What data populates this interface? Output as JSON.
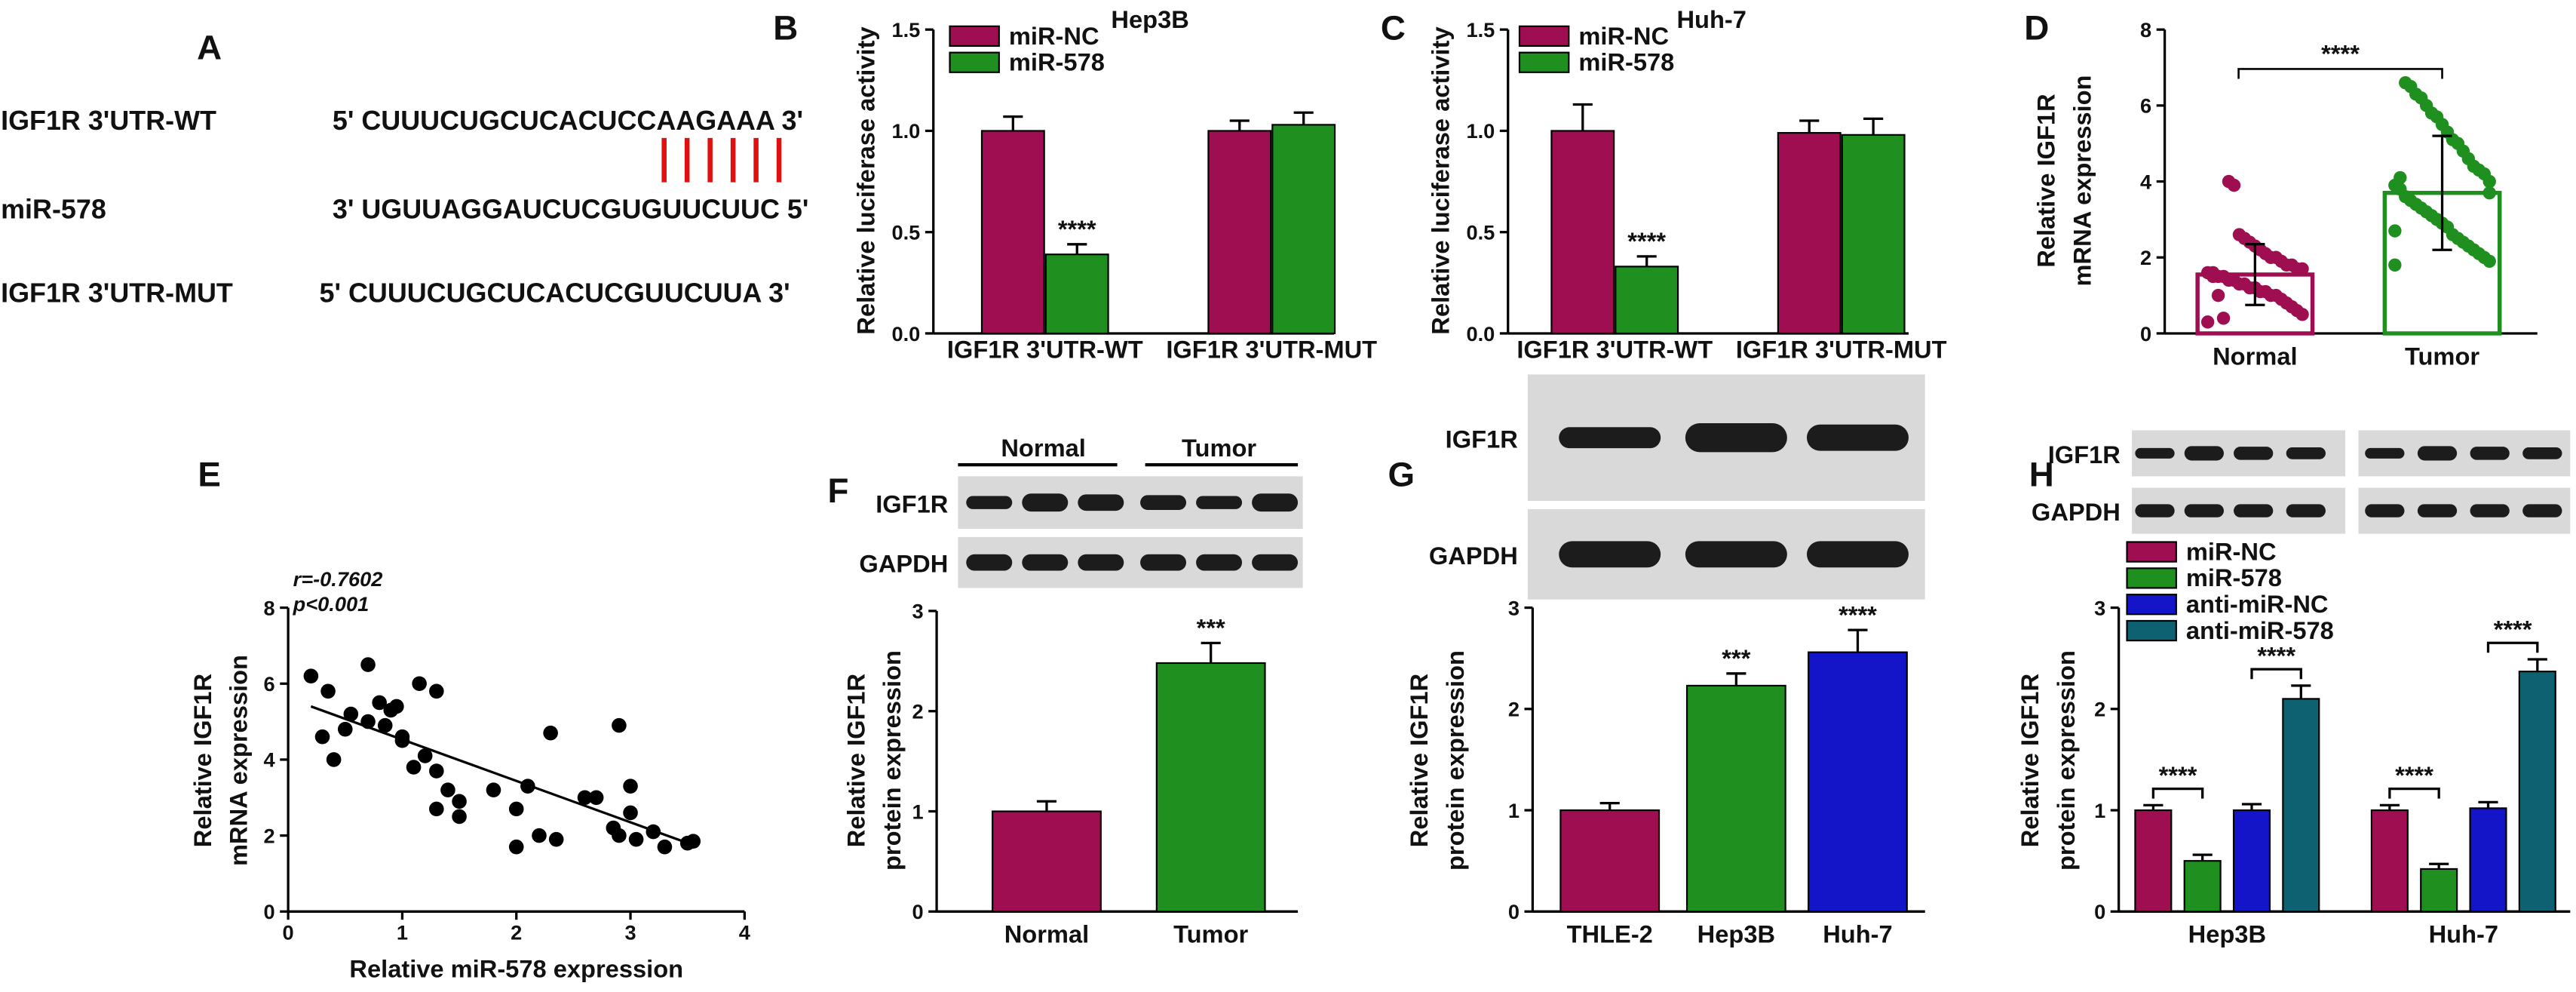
{
  "panel_a": {
    "label": "A",
    "rows": [
      {
        "name": "IGF1R 3'UTR-WT",
        "sequence": "5' CUUUCUGCUCACUCCAAGAAA 3'"
      },
      {
        "name": "miR-578",
        "sequence": "3' UGUUAGGAUCUCGUGUUCUUC 5'"
      },
      {
        "name": "IGF1R 3'UTR-MUT",
        "sequence": "5' CUUUCUGCUCACUCGUUCUUA 3'"
      }
    ]
  },
  "blots": {
    "F": {
      "groups": [
        "Normal",
        "Tumor"
      ],
      "rows": [
        "IGF1R",
        "GAPDH"
      ]
    },
    "G": {
      "rows": [
        "IGF1R",
        "GAPDH"
      ]
    },
    "H": {
      "rows": [
        "IGF1R",
        "GAPDH"
      ]
    }
  },
  "chart_data": [
    {
      "type": "bar",
      "label": "B",
      "title": "Hep3B",
      "ylabel": "Relative luciferase activity",
      "categories": [
        "IGF1R 3'UTR-WT",
        "IGF1R 3'UTR-MUT"
      ],
      "series": [
        {
          "name": "miR-NC",
          "color": "#9e0e50",
          "values": [
            1.0,
            1.0
          ],
          "errors": [
            0.07,
            0.05
          ],
          "significance": [
            null,
            null
          ]
        },
        {
          "name": "miR-578",
          "color": "#1f8f1f",
          "values": [
            0.39,
            1.03
          ],
          "errors": [
            0.05,
            0.06
          ],
          "significance": [
            "****",
            null
          ]
        }
      ],
      "ylim": [
        0,
        1.5
      ],
      "yticks": [
        {
          "value": 0,
          "label": "0.0"
        },
        {
          "value": 0.5,
          "label": "0.5"
        },
        {
          "value": 1,
          "label": "1.0"
        },
        {
          "value": 1.5,
          "label": "1.5"
        }
      ]
    },
    {
      "type": "bar",
      "label": "C",
      "title": "Huh-7",
      "ylabel": "Relative luciferase activity",
      "categories": [
        "IGF1R 3'UTR-WT",
        "IGF1R 3'UTR-MUT"
      ],
      "series": [
        {
          "name": "miR-NC",
          "color": "#9e0e50",
          "values": [
            1.0,
            0.99
          ],
          "errors": [
            0.13,
            0.06
          ],
          "significance": [
            null,
            null
          ]
        },
        {
          "name": "miR-578",
          "color": "#1f8f1f",
          "values": [
            0.33,
            0.98
          ],
          "errors": [
            0.05,
            0.08
          ],
          "significance": [
            "****",
            null
          ]
        }
      ],
      "ylim": [
        0,
        1.5
      ],
      "yticks": [
        {
          "value": 0,
          "label": "0.0"
        },
        {
          "value": 0.5,
          "label": "0.5"
        },
        {
          "value": 1,
          "label": "1.0"
        },
        {
          "value": 1.5,
          "label": "1.5"
        }
      ]
    },
    {
      "type": "dot_bar",
      "label": "D",
      "ylabel": [
        "Relative IGF1R",
        "mRNA expression"
      ],
      "categories": [
        "Normal",
        "Tumor"
      ],
      "colors": [
        "#9e0e50",
        "#1f8f1f"
      ],
      "values": [
        1.55,
        3.7
      ],
      "errors": [
        0.8,
        1.5
      ],
      "significance": [
        null,
        "****"
      ],
      "points": [
        [
          0.3,
          0.5,
          0.6,
          0.7,
          0.8,
          0.9,
          1.0,
          1.0,
          1.1,
          1.1,
          1.2,
          1.2,
          1.3,
          1.3,
          1.4,
          1.4,
          1.5,
          1.5,
          1.6,
          1.6,
          1.7,
          1.7,
          1.8,
          1.8,
          1.9,
          2.0,
          2.0,
          2.1,
          2.2,
          2.3,
          2.4,
          2.5,
          2.6,
          3.9,
          4.0,
          0.4,
          1.0,
          1.5
        ],
        [
          1.8,
          1.9,
          2.0,
          2.1,
          2.2,
          2.3,
          2.4,
          2.5,
          2.6,
          2.8,
          2.9,
          3.0,
          3.1,
          3.2,
          3.3,
          3.4,
          3.5,
          3.6,
          3.8,
          3.9,
          4.0,
          4.2,
          4.3,
          4.4,
          4.6,
          4.8,
          5.0,
          5.1,
          5.3,
          5.5,
          5.7,
          5.8,
          6.0,
          6.2,
          6.3,
          6.5,
          6.6,
          4.1,
          2.7,
          3.7
        ]
      ],
      "ylim": [
        0,
        8
      ],
      "yticks": [
        0,
        2,
        4,
        6,
        8
      ]
    },
    {
      "type": "scatter",
      "label": "E",
      "xlabel": "Relative miR-578 expression",
      "ylabel": [
        "Relative IGF1R",
        "mRNA expression"
      ],
      "annotations": [
        "r=-0.7602",
        "p<0.001"
      ],
      "x": [
        0.2,
        0.3,
        0.35,
        0.4,
        0.5,
        0.55,
        0.7,
        0.7,
        0.8,
        0.85,
        0.9,
        0.95,
        1.0,
        1.0,
        1.15,
        1.2,
        1.3,
        1.3,
        1.4,
        1.3,
        1.5,
        1.5,
        1.8,
        2.0,
        2.0,
        2.1,
        2.2,
        2.3,
        2.35,
        2.6,
        2.7,
        2.9,
        2.9,
        3.0,
        3.0,
        3.05,
        3.2,
        3.3,
        3.5,
        3.55,
        2.85,
        1.1
      ],
      "y": [
        6.2,
        4.6,
        5.8,
        4.0,
        4.8,
        5.2,
        6.5,
        5.0,
        5.5,
        4.9,
        5.3,
        5.4,
        4.6,
        4.5,
        6.0,
        4.1,
        5.8,
        3.7,
        3.2,
        2.7,
        2.9,
        2.5,
        3.2,
        1.7,
        2.7,
        3.3,
        2.0,
        4.7,
        1.9,
        3.0,
        3.0,
        4.9,
        2.0,
        2.6,
        3.3,
        1.9,
        2.1,
        1.7,
        1.8,
        1.85,
        2.2,
        3.8
      ],
      "fit_line": {
        "x": [
          0.2,
          3.55
        ],
        "y": [
          5.4,
          1.75
        ]
      },
      "xlim": [
        0,
        4
      ],
      "xticks": [
        0,
        1,
        2,
        3,
        4
      ],
      "ylim": [
        0,
        8
      ],
      "yticks": [
        0,
        2,
        4,
        6,
        8
      ]
    },
    {
      "type": "bar",
      "label": "F",
      "ylabel": [
        "Relative IGF1R",
        "protein expression"
      ],
      "categories": [
        "Normal",
        "Tumor"
      ],
      "colors": [
        "#9e0e50",
        "#1f8f1f"
      ],
      "values": [
        1.0,
        2.48
      ],
      "errors": [
        0.1,
        0.2
      ],
      "significance": [
        null,
        "***"
      ],
      "ylim": [
        0,
        3
      ],
      "yticks": [
        0,
        1,
        2,
        3
      ]
    },
    {
      "type": "bar",
      "label": "G",
      "ylabel": [
        "Relative IGF1R",
        "protein expression"
      ],
      "categories": [
        "THLE-2",
        "Hep3B",
        "Huh-7"
      ],
      "colors": [
        "#9e0e50",
        "#1f8f1f",
        "#1414c8"
      ],
      "values": [
        1.0,
        2.23,
        2.56
      ],
      "errors": [
        0.07,
        0.12,
        0.22
      ],
      "significance": [
        null,
        "***",
        "****"
      ],
      "ylim": [
        0,
        3
      ],
      "yticks": [
        0,
        1,
        2,
        3
      ]
    },
    {
      "type": "bar",
      "label": "H",
      "ylabel": [
        "Relative IGF1R",
        "protein expression"
      ],
      "categories": [
        "Hep3B",
        "Huh-7"
      ],
      "brackets": true,
      "series": [
        {
          "name": "miR-NC",
          "color": "#9e0e50",
          "values": [
            1.0,
            1.0
          ],
          "errors": [
            0.05,
            0.05
          ],
          "significance": [
            null,
            null
          ]
        },
        {
          "name": "miR-578",
          "color": "#1f8f1f",
          "values": [
            0.5,
            0.42
          ],
          "errors": [
            0.06,
            0.05
          ],
          "significance": [
            "****",
            "****"
          ]
        },
        {
          "name": "anti-miR-NC",
          "color": "#1414c8",
          "values": [
            1.0,
            1.02
          ],
          "errors": [
            0.06,
            0.06
          ],
          "significance": [
            null,
            null
          ]
        },
        {
          "name": "anti-miR-578",
          "color": "#0e6170",
          "values": [
            2.1,
            2.37
          ],
          "errors": [
            0.13,
            0.12
          ],
          "significance": [
            "****",
            "****"
          ]
        }
      ],
      "ylim": [
        0,
        3
      ],
      "yticks": [
        0,
        1,
        2,
        3
      ]
    }
  ]
}
